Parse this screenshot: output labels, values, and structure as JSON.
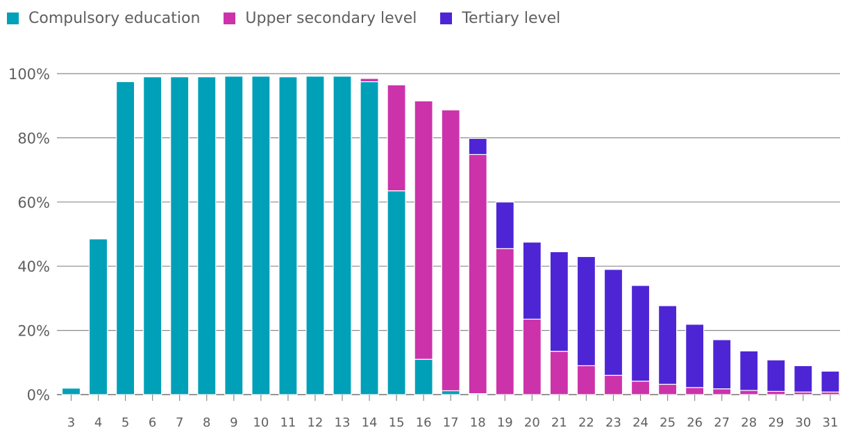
{
  "chart_data": {
    "type": "bar",
    "stacked": true,
    "title": "",
    "xlabel": "",
    "ylabel": "",
    "ylim": [
      0,
      100
    ],
    "yticks": [
      "0%",
      "20%",
      "40%",
      "60%",
      "80%",
      "100%"
    ],
    "grid": true,
    "legend_position": "top-left",
    "categories": [
      "3",
      "4",
      "5",
      "6",
      "7",
      "8",
      "9",
      "10",
      "11",
      "12",
      "13",
      "14",
      "15",
      "16",
      "17",
      "18",
      "19",
      "20",
      "21",
      "22",
      "23",
      "24",
      "25",
      "26",
      "27",
      "28",
      "29",
      "30",
      "31"
    ],
    "series": [
      {
        "name": "Compulsory education",
        "color": "#00a0b8",
        "values": [
          2,
          48.5,
          97.5,
          99,
          99,
          99,
          99.2,
          99.2,
          99,
          99.2,
          99.2,
          97.5,
          63.5,
          11,
          1.2,
          0.3,
          0,
          0,
          0,
          0,
          0,
          0,
          0,
          0,
          0,
          0,
          0,
          0,
          0
        ]
      },
      {
        "name": "Upper secondary level",
        "color": "#cc33aa",
        "values": [
          0,
          0,
          0,
          0,
          0,
          0,
          0,
          0,
          0,
          0,
          0,
          1,
          33,
          80.5,
          87.5,
          74.5,
          45.5,
          23.5,
          13.5,
          9,
          6,
          4.2,
          3.2,
          2.2,
          1.8,
          1.3,
          1,
          0.8,
          0.8
        ]
      },
      {
        "name": "Tertiary level",
        "color": "#4d25d5",
        "values": [
          0,
          0,
          0,
          0,
          0,
          0,
          0,
          0,
          0,
          0,
          0,
          0,
          0,
          0,
          0,
          5,
          14.5,
          24,
          31,
          34,
          33,
          29.8,
          24.5,
          19.7,
          15.3,
          12.3,
          9.8,
          8.2,
          6.5
        ]
      }
    ]
  }
}
